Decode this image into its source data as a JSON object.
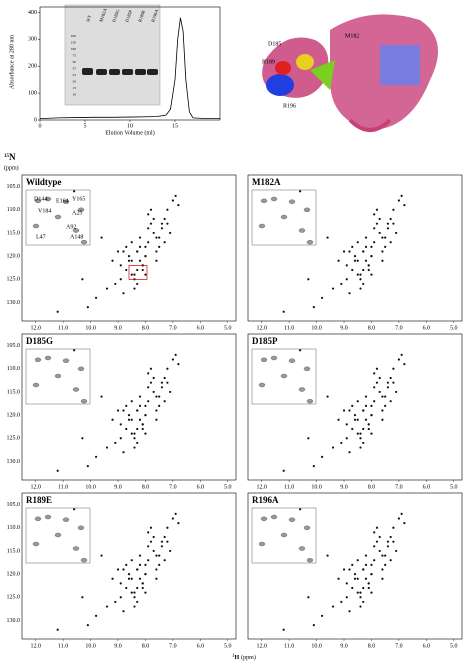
{
  "chromatogram": {
    "y_label": "Absorbance at 280 nm",
    "x_label": "Elution Volume (ml)",
    "xlim": [
      0,
      20
    ],
    "ylim": [
      0,
      420
    ],
    "xticks": [
      0,
      5,
      10,
      15
    ],
    "yticks": [
      0,
      100,
      200,
      300,
      400
    ],
    "x": [
      0,
      2,
      4,
      6,
      8,
      10,
      12,
      13,
      14,
      14.5,
      15,
      15.3,
      15.6,
      15.9,
      16.2,
      16.6,
      17,
      18,
      20
    ],
    "y": [
      5,
      8,
      9,
      10,
      10,
      11,
      12,
      13,
      18,
      40,
      150,
      300,
      380,
      330,
      150,
      30,
      8,
      6,
      6
    ]
  },
  "gel": {
    "lanes": [
      "WT",
      "M182A",
      "D185G",
      "D185P",
      "R189E",
      "R196A"
    ],
    "markers": [
      "250",
      "150",
      "100",
      "75",
      "50",
      "37",
      "25",
      "20",
      "15",
      "10"
    ]
  },
  "structure": {
    "labels": [
      "D185",
      "M182",
      "R189",
      "R196"
    ]
  },
  "nmr": {
    "y_axis_label": {
      "mass": "15",
      "nucleus": "N",
      "unit": "(ppm)"
    },
    "x_axis_label": {
      "mass": "1",
      "nucleus": "H",
      "unit": "(ppm)"
    },
    "xlim": [
      12.5,
      4.7
    ],
    "ylim": [
      102.5,
      134
    ],
    "xticks": [
      {
        "value": 12,
        "label": "12.0"
      },
      {
        "value": 11,
        "label": "11.0"
      },
      {
        "value": 10,
        "label": "10.0"
      },
      {
        "value": 9,
        "label": "9.0"
      },
      {
        "value": 8,
        "label": "8.0"
      },
      {
        "value": 7,
        "label": "7.0"
      },
      {
        "value": 6,
        "label": "6.0"
      },
      {
        "value": 5,
        "label": "5.0"
      }
    ],
    "yticks": [
      {
        "value": 105,
        "label": "105.0"
      },
      {
        "value": 110,
        "label": "110.0"
      },
      {
        "value": 115,
        "label": "115.0"
      },
      {
        "value": 120,
        "label": "120.0"
      },
      {
        "value": 125,
        "label": "125.0"
      },
      {
        "value": 130,
        "label": "130.0"
      }
    ],
    "panels": [
      {
        "label": "Wildtype"
      },
      {
        "label": "M182A"
      },
      {
        "label": "D185G"
      },
      {
        "label": "D185P"
      },
      {
        "label": "R189E"
      },
      {
        "label": "R196A"
      }
    ],
    "inset_labels": [
      "D144",
      "E164",
      "Y165",
      "V184",
      "A25",
      "A92",
      "L47",
      "A148"
    ],
    "peaks": {
      "h": [
        8.5,
        8.3,
        8.1,
        7.9,
        8.7,
        8.0,
        7.6,
        8.4,
        8.9,
        7.4,
        8.2,
        8.6,
        7.8,
        9.1,
        7.3,
        8.0,
        8.8,
        7.7,
        8.3,
        9.4,
        7.2,
        8.5,
        7.9,
        8.1,
        9.8,
        7.0,
        8.4,
        8.2,
        7.5,
        10.3,
        6.9,
        8.6,
        7.8,
        8.0,
        9.2,
        7.4,
        8.3,
        7.1,
        8.7,
        10.6,
        7.6,
        8.9,
        8.2,
        7.9,
        9.6,
        6.8,
        8.4,
        7.7,
        8.1,
        11.2,
        7.3,
        8.5,
        9.0,
        7.2,
        8.8,
        7.6,
        8.0,
        10.1,
        7.5,
        8.3
      ],
      "n": [
        121,
        119,
        122,
        117,
        123,
        120,
        116,
        124,
        125,
        114,
        118,
        121,
        113,
        126,
        112,
        120,
        119,
        115,
        123,
        127,
        110,
        117,
        111,
        122,
        129,
        108,
        125,
        116,
        118,
        125,
        107,
        120,
        110,
        124,
        121,
        113,
        126,
        115,
        118,
        106,
        119,
        122,
        121,
        114,
        116,
        109,
        127,
        112,
        123,
        132,
        117,
        124,
        119,
        113,
        128,
        121,
        118,
        131,
        116,
        119
      ]
    }
  }
}
